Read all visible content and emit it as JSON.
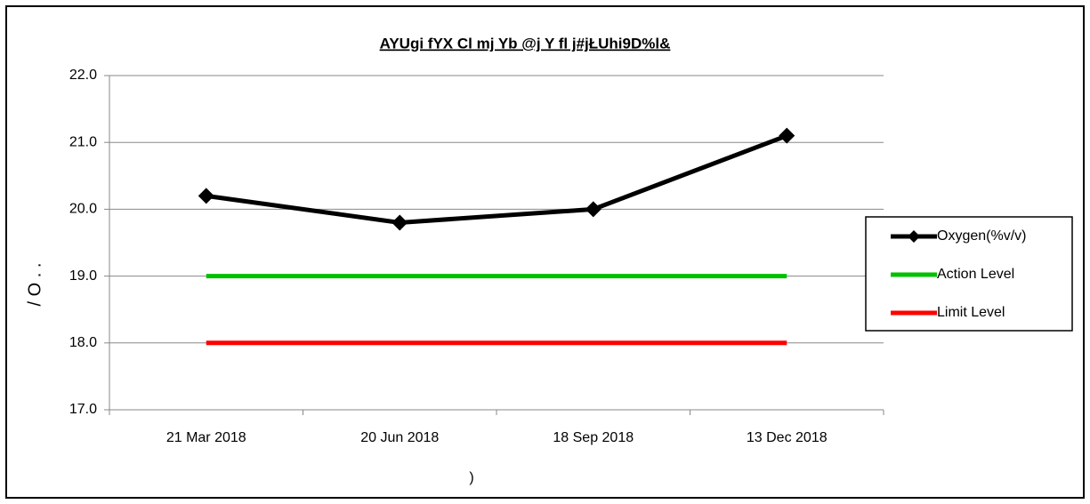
{
  "chart_data": {
    "type": "line",
    "title": "AYUgi fYX Cl mj Yb @j Y fl j#jŁUhi9D%l&",
    "x_label": ")",
    "y_label": "/ O . .",
    "categories": [
      "21 Mar 2018",
      "20 Jun 2018",
      "18 Sep 2018",
      "13 Dec 2018"
    ],
    "series": [
      {
        "name": "Oxygen(%v/v)",
        "color": "#000000",
        "marker": "diamond",
        "values": [
          20.2,
          19.8,
          20.0,
          21.1
        ]
      },
      {
        "name": "Action Level",
        "color": "#00c000",
        "values": [
          19,
          19,
          19,
          19
        ]
      },
      {
        "name": "Limit Level",
        "color": "#ff0000",
        "values": [
          18,
          18,
          18,
          18
        ]
      }
    ],
    "ylim": [
      17,
      22
    ],
    "yticks": [
      {
        "value": 17,
        "label": "17.0"
      },
      {
        "value": 18,
        "label": "18.0"
      },
      {
        "value": 19,
        "label": "19.0"
      },
      {
        "value": 20,
        "label": "20.0"
      },
      {
        "value": 21,
        "label": "21.0"
      },
      {
        "value": 22,
        "label": "22.0"
      }
    ],
    "grid": true,
    "legend": "right"
  }
}
